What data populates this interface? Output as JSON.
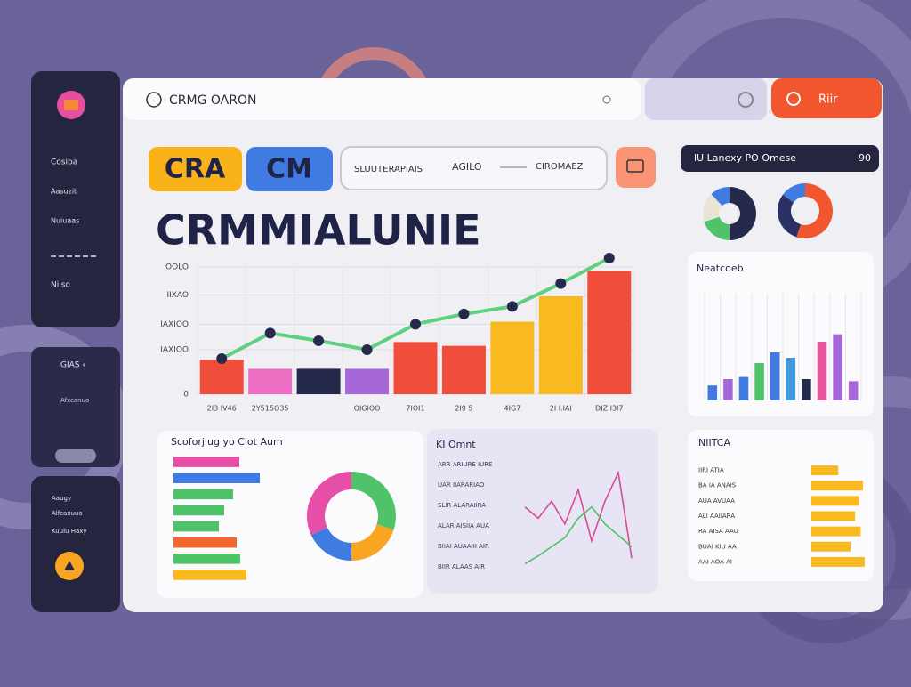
{
  "sidebar": {
    "items": [
      "Cosiba",
      "Aasuzit",
      "Nuiuaas",
      "Niiso"
    ],
    "group": {
      "title": "GIAS ‹",
      "item": "Afxcanuo"
    },
    "footer": [
      "Aaugy",
      "Alfcaxuuo",
      "Kuuiu Haxy"
    ]
  },
  "header": {
    "title": "CRMG OARON",
    "button": "Riir"
  },
  "tabs": [
    "CRA",
    "CM"
  ],
  "search": [
    "SLUUTERAPIAIS",
    "AGILO",
    "CIROMAEZ"
  ],
  "headline": "CRMMIALUNIE",
  "summary": {
    "label": "lU Lanexy PO Omese",
    "value": "90"
  },
  "chart_data": [
    {
      "type": "combo",
      "categories": [
        "2I3 IV46",
        "2Y515O35",
        null,
        "OIGIOO",
        "7IOI1",
        "2I9 5",
        "4IG7",
        "2I I.IAI",
        "DIZ I3I7"
      ],
      "series": [
        {
          "type": "bar",
          "colors": [
            "#f04e3a",
            "#ec6fc4",
            "#252a4d",
            "#a667d8",
            "#f04e3a",
            "#f04e3a",
            "#f9b921",
            "#f9b921",
            "#f04e3a"
          ],
          "values": [
            27,
            20,
            20,
            20,
            41,
            38,
            57,
            77,
            97
          ]
        },
        {
          "type": "line",
          "color": "#5fcf80",
          "values": [
            28,
            48,
            42,
            35,
            55,
            63,
            69,
            87,
            107
          ]
        }
      ],
      "ylim": [
        0,
        100
      ],
      "yticks": [
        {
          "value": 0,
          "label": "0"
        },
        {
          "value": 35,
          "label": "IAXIOO"
        },
        {
          "value": 55,
          "label": "IAXIOO"
        },
        {
          "value": 78,
          "label": "IIXAO"
        },
        {
          "value": 100,
          "label": "OOLO"
        }
      ],
      "grid": true
    },
    {
      "type": "pie",
      "colors": [
        "#252a4d",
        "#4fc26a",
        "#e9e5d6",
        "#3f7be0"
      ],
      "values": [
        50,
        20,
        18,
        12
      ]
    },
    {
      "type": "pie",
      "colors": [
        "#f2562f",
        "#2a2f66",
        "#3f7be0"
      ],
      "values": [
        55,
        30,
        15
      ]
    },
    {
      "type": "bar",
      "title": "Neatcoeb",
      "colors": [
        "#3f7be0",
        "#a667d8",
        "#3f7be0",
        "#4fc26a",
        "#3f7be0",
        "#3f9be0",
        "#252a4d",
        "#e6549d",
        "#a667d8",
        "#a667d8"
      ],
      "values": [
        14,
        20,
        22,
        35,
        45,
        40,
        20,
        55,
        62,
        18
      ],
      "ylim": [
        0,
        100
      ],
      "grid": true
    },
    {
      "type": "hbar",
      "title": "NIITCA",
      "categories": [
        "IIRI ATIA",
        "BA IA ANAIS",
        "AUA AVUAA",
        "ALI AAIIARA",
        "RA AISA AAU",
        "BUAI KIU AA",
        "AAI AOA AI"
      ],
      "color": "#f9b921",
      "values": [
        48,
        92,
        85,
        78,
        88,
        70,
        95
      ],
      "xlim": [
        0,
        100
      ]
    },
    {
      "type": "hbar",
      "title": "Scoforjiug yo Clot Aum",
      "colors": [
        "#e64fa8",
        "#3f7be0",
        "#4fc26a",
        "#4fc26a",
        "#4fc26a",
        "#f2672f",
        "#4fc26a",
        "#f9b921"
      ],
      "values": [
        74,
        97,
        67,
        57,
        51,
        71,
        75,
        82
      ],
      "xlim": [
        0,
        100
      ]
    },
    {
      "type": "pie",
      "colors": [
        "#4fc26a",
        "#f9a521",
        "#3f7be0",
        "#e64fa8"
      ],
      "values": [
        30,
        20,
        18,
        32
      ]
    },
    {
      "type": "line",
      "title": "KI Omnt",
      "annotations": [
        "ARR ARIURE IURE",
        "UAR IIARARIAO",
        "SLIR ALARAIIRA",
        "ALAR AISIIA AUA",
        "BIIAI AUAAIII AIR",
        "BIIR ALAAS AIR"
      ],
      "series": [
        {
          "color": "#d94b9a",
          "values": [
            55,
            45,
            60,
            40,
            70,
            25,
            60,
            85,
            10
          ]
        },
        {
          "color": "#4fc26a",
          "values": [
            5,
            12,
            20,
            28,
            45,
            55,
            40,
            30,
            20
          ]
        }
      ],
      "ylim": [
        0,
        100
      ]
    }
  ]
}
